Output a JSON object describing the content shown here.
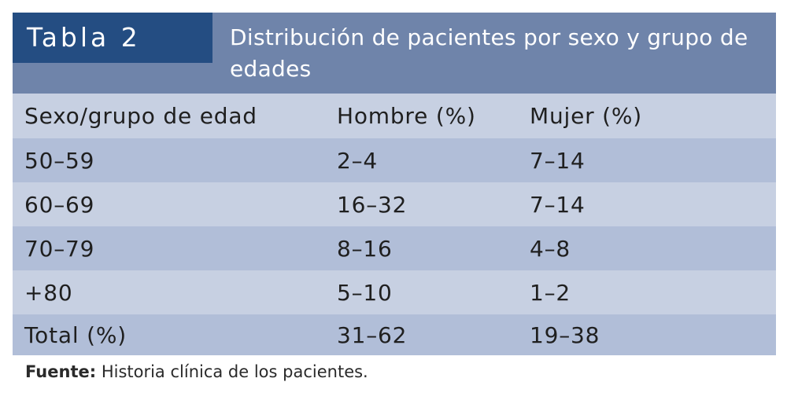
{
  "table": {
    "label": "Tabla 2",
    "caption": "Distribución de pacientes por sexo y grupo de edades",
    "columns": [
      "Sexo/grupo de edad",
      "Hombre (%)",
      "Mujer (%)"
    ],
    "rows": [
      [
        "50–59",
        "2–4",
        "7–14"
      ],
      [
        "60–69",
        "16–32",
        "7–14"
      ],
      [
        "70–79",
        "8–16",
        "4–8"
      ],
      [
        "+80",
        "5–10",
        "1–2"
      ],
      [
        "Total (%)",
        "31–62",
        "19–38"
      ]
    ]
  },
  "source": {
    "label": "Fuente:",
    "text": "Historia clínica de los pacientes."
  },
  "colors": {
    "label_background": "#244d82",
    "header_background": "#6f84aa",
    "light_row": "#c7d0e2",
    "shaded_row": "#b1bed8"
  }
}
